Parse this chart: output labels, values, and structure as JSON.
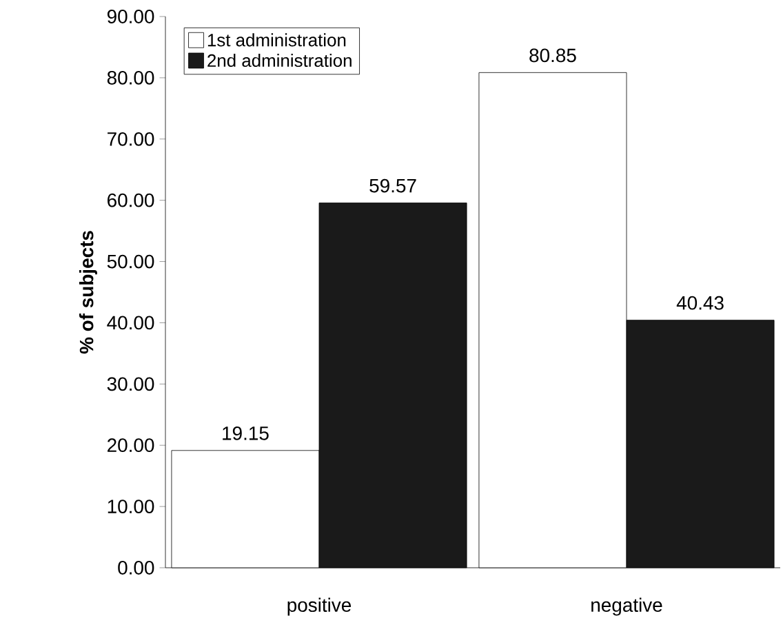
{
  "chart_data": {
    "type": "bar",
    "ylabel": "% of subjects",
    "categories": [
      "positive",
      "negative"
    ],
    "series": [
      {
        "name": "1st administration",
        "color": "#ffffff",
        "values": [
          19.15,
          80.85
        ]
      },
      {
        "name": "2nd administration",
        "color": "#1a1a1a",
        "values": [
          59.57,
          40.43
        ]
      }
    ],
    "ylim": [
      0,
      90
    ],
    "yticks": [
      {
        "value": 0,
        "label": "0.00"
      },
      {
        "value": 10,
        "label": "10.00"
      },
      {
        "value": 20,
        "label": "20.00"
      },
      {
        "value": 30,
        "label": "30.00"
      },
      {
        "value": 40,
        "label": "40.00"
      },
      {
        "value": 50,
        "label": "50.00"
      },
      {
        "value": 60,
        "label": "60.00"
      },
      {
        "value": 70,
        "label": "70.00"
      },
      {
        "value": 80,
        "label": "80.00"
      },
      {
        "value": 90,
        "label": "90.00"
      }
    ],
    "data_labels": true,
    "legend": "top left",
    "grid": false
  }
}
